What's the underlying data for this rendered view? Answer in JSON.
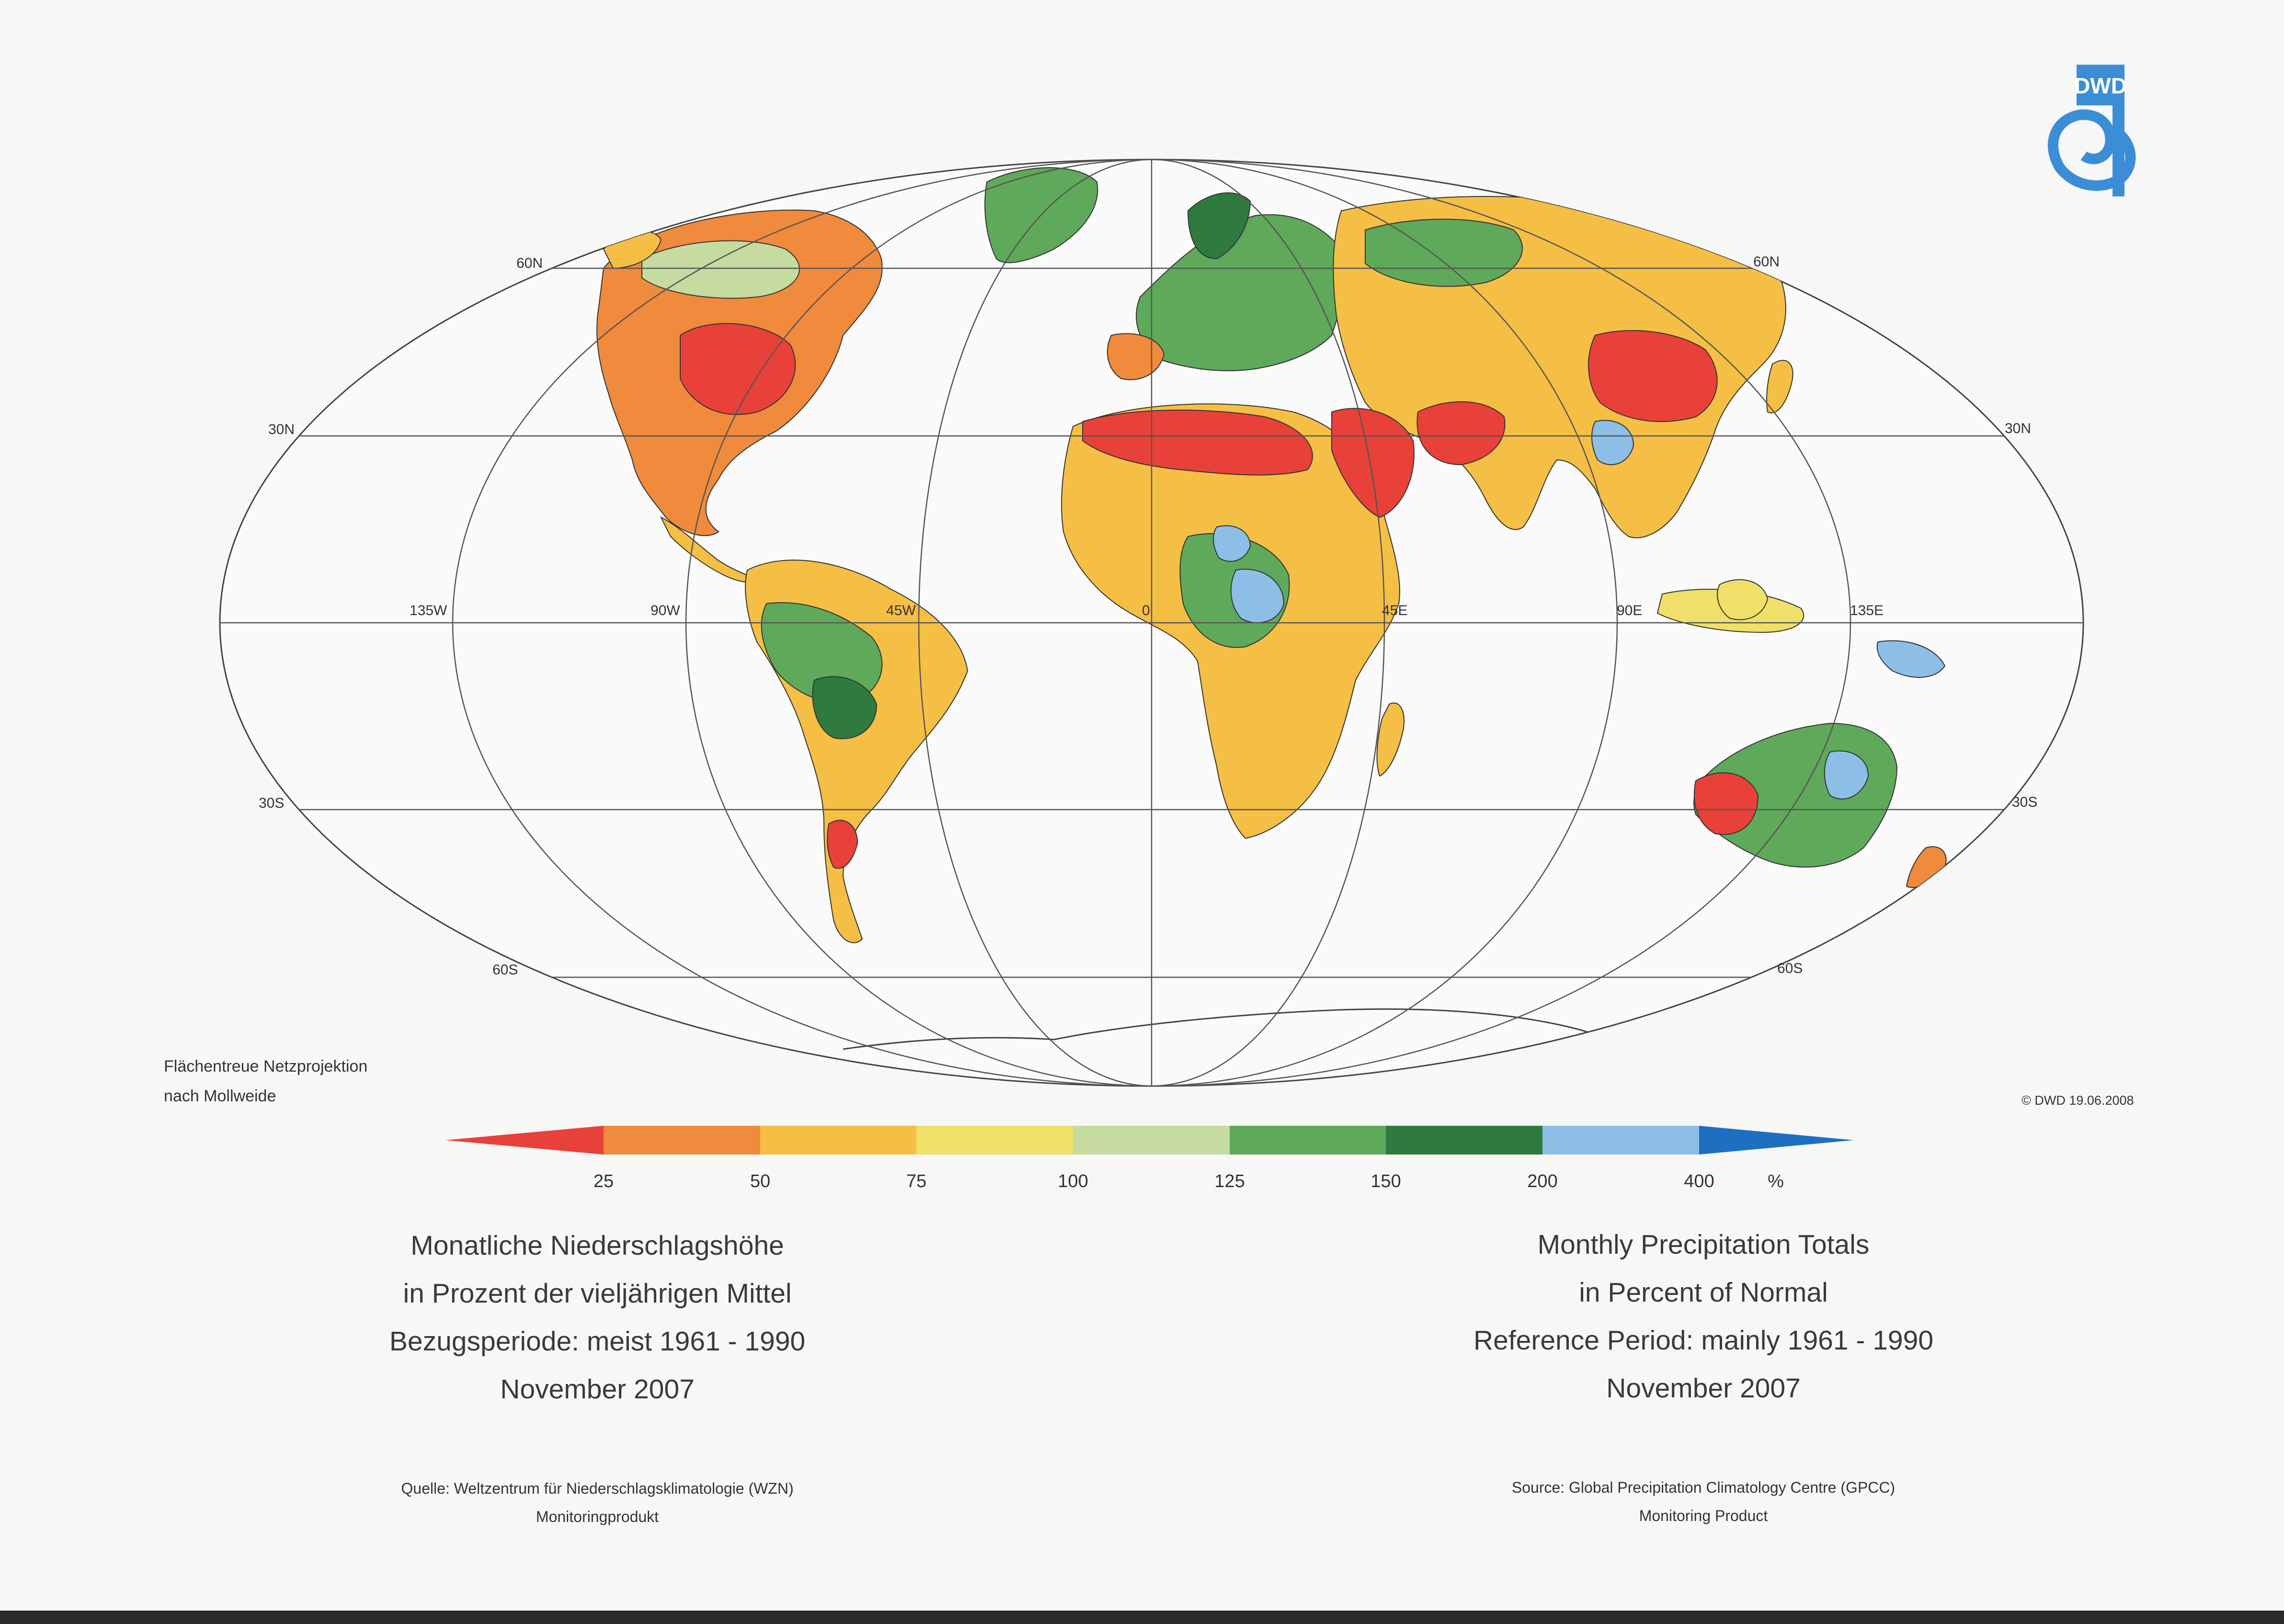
{
  "logo": {
    "text": "DWD",
    "color": "#3b8ed6"
  },
  "map": {
    "projection_note": [
      "Flächentreue Netzprojektion",
      "nach Mollweide"
    ],
    "latitude_labels": [
      "60N",
      "30N",
      "30S",
      "60S"
    ],
    "longitude_labels": [
      "135W",
      "90W",
      "45W",
      "0",
      "45E",
      "90E",
      "135E"
    ],
    "copyright": "© DWD 19.06.2008",
    "land_classes": [
      {
        "class": "below_25",
        "color": "#e8413a"
      },
      {
        "class": "25_50",
        "color": "#f08a3c"
      },
      {
        "class": "50_75",
        "color": "#f5bf45"
      },
      {
        "class": "75_100",
        "color": "#f0e06a"
      },
      {
        "class": "100_125",
        "color": "#c6dba0"
      },
      {
        "class": "125_150",
        "color": "#5fa95a"
      },
      {
        "class": "150_200",
        "color": "#2f7a3f"
      },
      {
        "class": "200_400",
        "color": "#8dbfe6"
      },
      {
        "class": "above_400",
        "color": "#1e6fc2"
      }
    ]
  },
  "legend": {
    "unit": "%",
    "ticks": [
      "25",
      "50",
      "75",
      "100",
      "125",
      "150",
      "200",
      "400"
    ],
    "colors": [
      "#e8413a",
      "#f08a3c",
      "#f5bf45",
      "#f0e06a",
      "#c6dba0",
      "#5fa95a",
      "#2f7a3f",
      "#8dbfe6",
      "#1e6fc2"
    ]
  },
  "title_de": [
    "Monatliche Niederschlagshöhe",
    "in Prozent der vieljährigen Mittel",
    "Bezugsperiode: meist 1961 - 1990",
    "November 2007"
  ],
  "title_en": [
    "Monthly Precipitation Totals",
    "in Percent of Normal",
    "Reference Period: mainly 1961 - 1990",
    "November 2007"
  ],
  "source_de": [
    "Quelle: Weltzentrum für Niederschlagsklimatologie (WZN)",
    "Monitoringprodukt"
  ],
  "source_en": [
    "Source: Global Precipitation Climatology Centre (GPCC)",
    "Monitoring Product"
  ]
}
